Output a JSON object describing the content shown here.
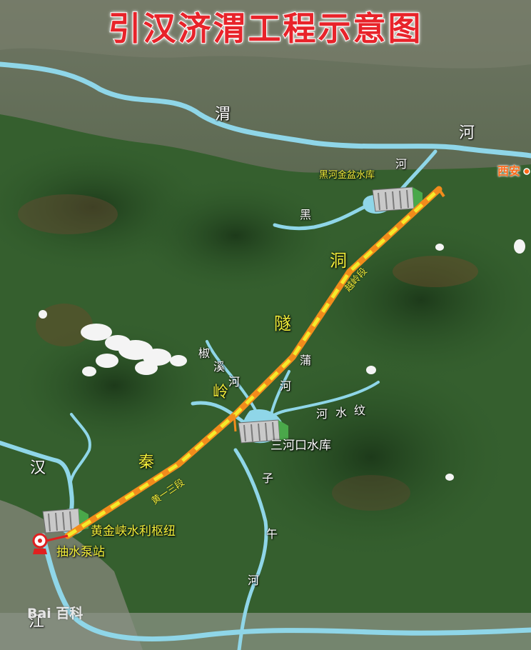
{
  "title": "引汉济渭工程示意图",
  "rivers": {
    "wei_char1": "渭",
    "wei_char2": "河",
    "heihe_char1": "河",
    "heihe_char2": "黑",
    "pu_char1": "蒲",
    "pu_char2": "河",
    "jiao_char1": "椒",
    "jiao_char2": "溪",
    "jiao_char3": "河",
    "wen_char1": "河",
    "wen_char2": "水",
    "wen_char3": "纹",
    "ziwu_char1": "子",
    "ziwu_char2": "午",
    "ziwu_char3": "河",
    "han_char1": "汉",
    "han_char2": "江"
  },
  "tunnel": {
    "char1": "隧",
    "char2": "洞",
    "yueling_segment": "越岭段",
    "segment1": "黄一三段"
  },
  "mountains": {
    "char1": "秦",
    "char2": "岭"
  },
  "facilities": {
    "heihe_reservoir": "黑河金盆水库",
    "sanhekou_reservoir": "三河口水库",
    "huangjinxia_hub": "黄金峡水利枢纽",
    "pump_station": "抽水泵站"
  },
  "cities": {
    "xian": "西安"
  },
  "watermark": "Bai 百科",
  "colors": {
    "title": "#e8232a",
    "river": "#8fd6e8",
    "tunnel_orange": "#f28c1c",
    "tunnel_yellow": "#f5ea2a",
    "label_yellow": "#f2ee3a",
    "city": "#ff6a1a",
    "pump": "#e02020"
  }
}
